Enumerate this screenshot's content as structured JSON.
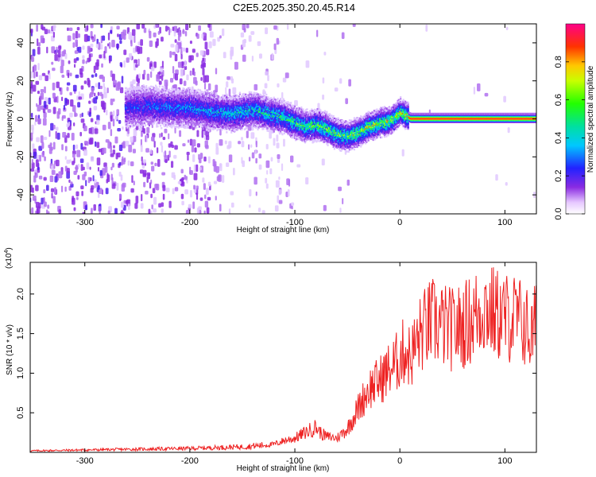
{
  "title": "C2E5.2025.350.20.45.R14",
  "chart_data": [
    {
      "type": "heatmap",
      "xlabel": "Height of straight line (km)",
      "ylabel": "Frequency (Hz)",
      "xlim": [
        -352,
        130
      ],
      "ylim": [
        -50,
        50
      ],
      "xticks": [
        -300,
        -200,
        -100,
        0,
        100
      ],
      "yticks": [
        -40,
        -20,
        0,
        20,
        40
      ],
      "colorbar": {
        "label": "Normalized spectral amplitude",
        "range": [
          0,
          1
        ],
        "ticks": [
          0.0,
          0.2,
          0.4,
          0.6,
          0.8
        ]
      },
      "ridge": {
        "x": [
          -260,
          -240,
          -220,
          -200,
          -180,
          -160,
          -140,
          -120,
          -110,
          -100,
          -90,
          -80,
          -70,
          -60,
          -50,
          -40,
          -30,
          -20,
          -10,
          -5,
          0,
          5,
          10,
          130
        ],
        "frequency": [
          6,
          7,
          6,
          6,
          4,
          3,
          5,
          2,
          1,
          -2,
          -4,
          -3,
          -5,
          -8,
          -9,
          -7,
          -4,
          -2,
          -1,
          1,
          4,
          2,
          0.5,
          0.5
        ]
      },
      "grid": false
    },
    {
      "type": "line",
      "xlabel": "Height of straight line (km)",
      "ylabel": "SNR (10 * v/v)",
      "yscale_label": "(x10",
      "yscale_exp": "4",
      "xlim": [
        -352,
        130
      ],
      "ylim": [
        0,
        24000
      ],
      "xticks": [
        -300,
        -200,
        -100,
        0,
        100
      ],
      "yticks": [
        5000,
        10000,
        15000,
        20000
      ],
      "ytick_labels": [
        "0.5",
        "1.0",
        "1.5",
        "2.0"
      ],
      "series": [
        {
          "color": "#ee2222",
          "x": [
            -352,
            -300,
            -250,
            -200,
            -150,
            -120,
            -110,
            -100,
            -90,
            -80,
            -75,
            -70,
            -60,
            -50,
            -40,
            -30,
            -20,
            -10,
            -5,
            0,
            5,
            10,
            15,
            20,
            30,
            40,
            50,
            60,
            70,
            80,
            90,
            100,
            110,
            120,
            125,
            130
          ],
          "y": [
            200,
            300,
            400,
            500,
            700,
            1000,
            1500,
            1800,
            2500,
            3200,
            2400,
            2000,
            1800,
            3000,
            5500,
            8000,
            9000,
            10500,
            11000,
            12000,
            13000,
            12000,
            13500,
            15000,
            16500,
            16000,
            15500,
            16000,
            17000,
            18500,
            17500,
            17000,
            17000,
            16000,
            14500,
            16500
          ]
        }
      ],
      "grid": false
    }
  ]
}
